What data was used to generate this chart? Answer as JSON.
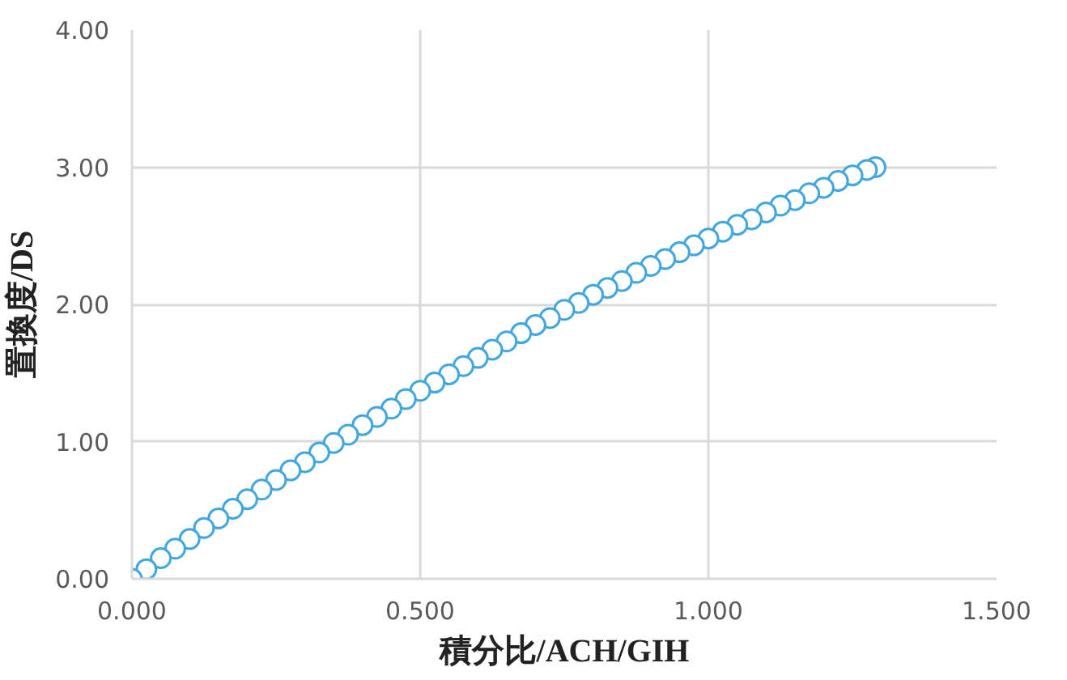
{
  "chart_data": {
    "type": "scatter",
    "xlabel": "積分比/ACH/GIH",
    "ylabel": "置換度/DS",
    "x": [
      0,
      0.025,
      0.05,
      0.075,
      0.1,
      0.125,
      0.15,
      0.175,
      0.2,
      0.225,
      0.25,
      0.275,
      0.3,
      0.325,
      0.35,
      0.375,
      0.4,
      0.425,
      0.45,
      0.475,
      0.5,
      0.525,
      0.55,
      0.575,
      0.6,
      0.625,
      0.65,
      0.675,
      0.7,
      0.725,
      0.75,
      0.775,
      0.8,
      0.825,
      0.85,
      0.875,
      0.9,
      0.925,
      0.95,
      0.975,
      1.0,
      1.025,
      1.05,
      1.075,
      1.1,
      1.125,
      1.15,
      1.175,
      1.2,
      1.225,
      1.25,
      1.275,
      1.29
    ],
    "series": [
      {
        "color": "#41a7de",
        "values": [
          0,
          0.07,
          0.15,
          0.22,
          0.29,
          0.37,
          0.44,
          0.51,
          0.58,
          0.65,
          0.72,
          0.79,
          0.85,
          0.92,
          0.99,
          1.05,
          1.12,
          1.18,
          1.24,
          1.31,
          1.37,
          1.43,
          1.49,
          1.55,
          1.61,
          1.67,
          1.73,
          1.79,
          1.85,
          1.9,
          1.96,
          2.01,
          2.07,
          2.12,
          2.17,
          2.23,
          2.28,
          2.33,
          2.38,
          2.43,
          2.48,
          2.53,
          2.58,
          2.62,
          2.67,
          2.72,
          2.76,
          2.81,
          2.85,
          2.9,
          2.94,
          2.98,
          3.0
        ]
      }
    ],
    "xlim": [
      0,
      1.5
    ],
    "ylim": [
      0,
      4
    ],
    "xticks": [
      {
        "value": 0,
        "label": "0.000"
      },
      {
        "value": 0.5,
        "label": "0.500"
      },
      {
        "value": 1,
        "label": "1.000"
      },
      {
        "value": 1.5,
        "label": "1.500"
      }
    ],
    "yticks": [
      {
        "value": 0,
        "label": "0.00"
      },
      {
        "value": 1,
        "label": "1.00"
      },
      {
        "value": 2,
        "label": "2.00"
      },
      {
        "value": 3,
        "label": "3.00"
      },
      {
        "value": 4,
        "label": "4.00"
      }
    ],
    "grid": true,
    "marker": "circle"
  }
}
